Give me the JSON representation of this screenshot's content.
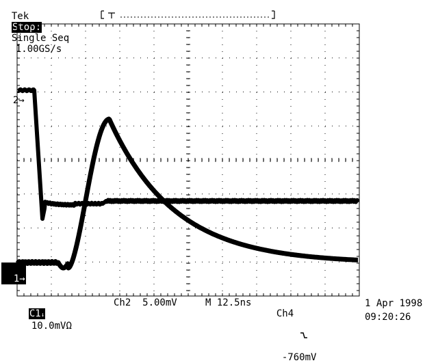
{
  "header": {
    "brand": "Tek",
    "run_state": "Stop:",
    "acquisition": "Single Seq",
    "sample_rate": "1.00GS/s"
  },
  "markers": {
    "ch2": "2",
    "ch1": "1"
  },
  "footer": {
    "ch1_label": "C1",
    "ch1_scale": "10.0mV",
    "ch2_scale": "Ch2  5.00mV",
    "timebase": "M 12.5ns",
    "trigger_source": "Ch4",
    "trigger_level": "-760mV",
    "date": "1 Apr 1998",
    "time": "09:20:26"
  },
  "colors": {
    "background": "#ffffff",
    "ink": "#000000"
  },
  "icons": {
    "record_bracket": "record-bracket-icon",
    "trigger_position": "trigger-position-icon",
    "impedance": "ohm-icon",
    "falling_edge": "falling-edge-icon",
    "channel_arrow": "arrow-right-icon"
  }
}
